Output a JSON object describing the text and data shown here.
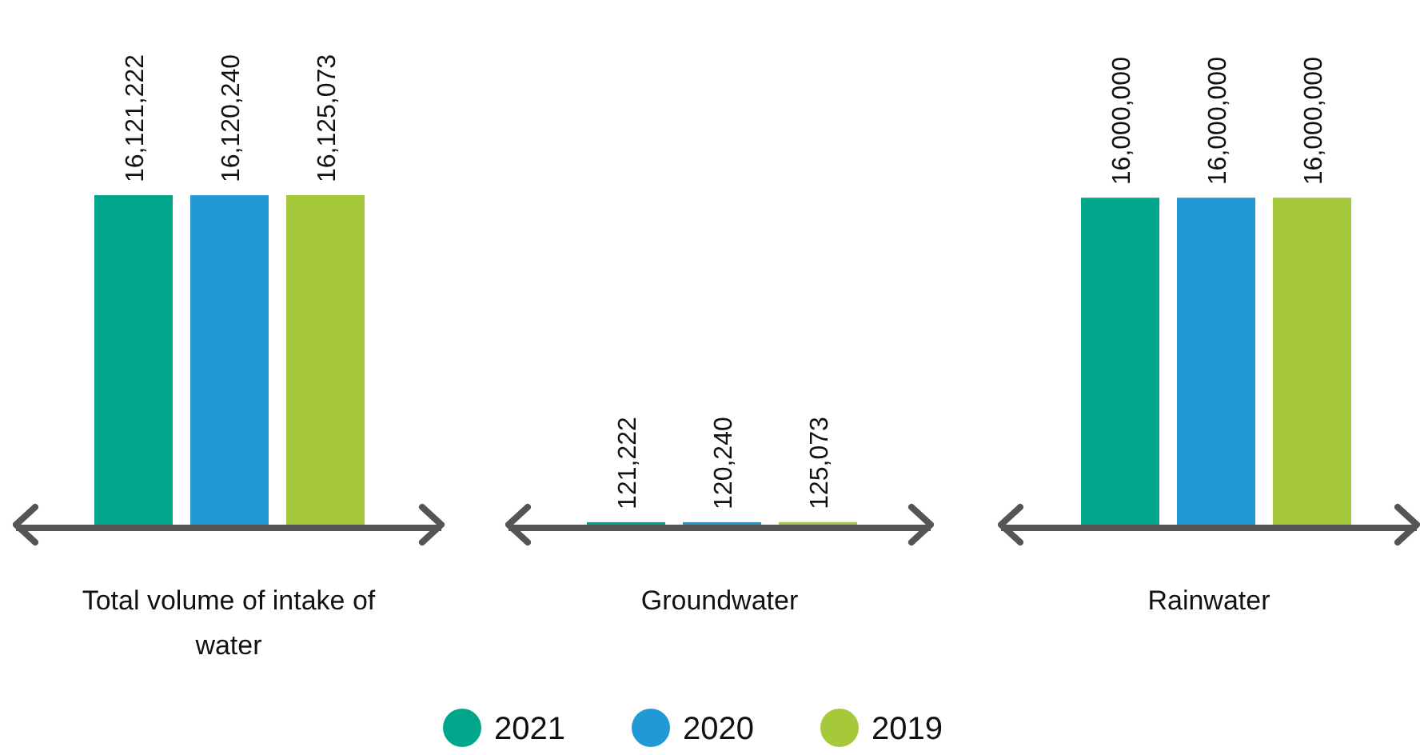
{
  "chart_data": {
    "type": "bar",
    "categories": [
      "Total volume of intake of water",
      "Groundwater",
      "Rainwater"
    ],
    "legend": "bottom",
    "series": [
      {
        "name": "2021",
        "color": "#00a68a",
        "values": [
          16121222,
          121222,
          16000000
        ],
        "value_labels": [
          "16,121,222",
          "121,222",
          "16,000,000"
        ]
      },
      {
        "name": "2020",
        "color": "#1f9ad6",
        "values": [
          16120240,
          120240,
          16000000
        ],
        "value_labels": [
          "16,120,240",
          "120,240",
          "16,000,000"
        ]
      },
      {
        "name": "2019",
        "color": "#a5c93a",
        "values": [
          16125073,
          125073,
          16000000
        ],
        "value_labels": [
          "16,125,073",
          "125,073",
          "16,000,000"
        ]
      }
    ]
  }
}
